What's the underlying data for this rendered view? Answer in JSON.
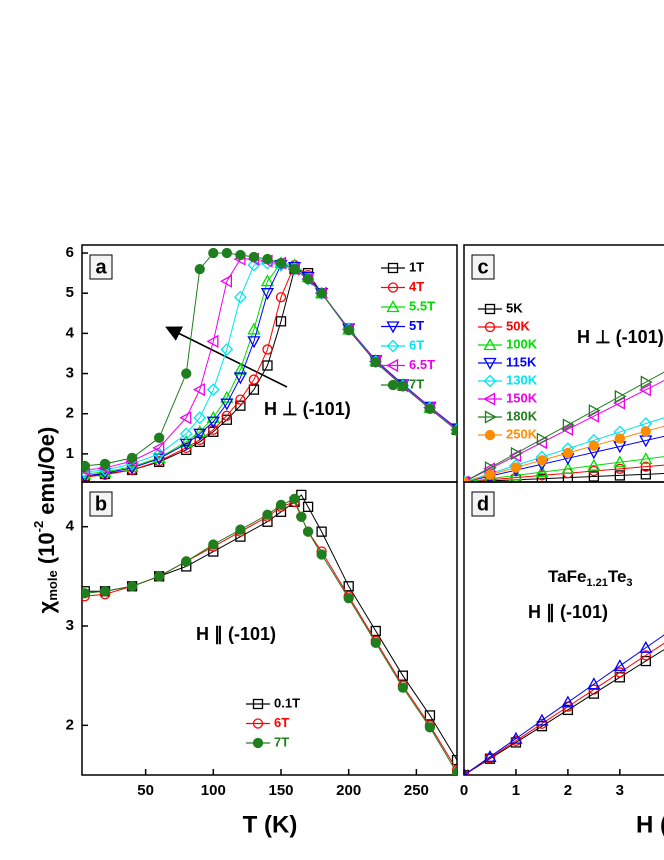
{
  "chart_data": [
    {
      "type": "line",
      "panel_label": "a",
      "ylabel": {
        "symbol": "χ",
        "sub": "mole",
        "pre": " (10",
        "sup": "-2",
        "post": " emu/Oe)"
      },
      "annotation": "H ⊥ (-101)",
      "x": [
        5,
        20,
        40,
        60,
        80,
        90,
        100,
        110,
        120,
        130,
        140,
        150,
        160,
        170,
        180,
        200,
        220,
        240,
        260,
        280
      ],
      "xlim": [
        3,
        280
      ],
      "ylim": [
        0.3,
        6.2
      ],
      "yticks": [
        1,
        2,
        3,
        4,
        5,
        6
      ],
      "series": [
        {
          "name": "1T",
          "color": "#000000",
          "marker": "square",
          "values": [
            0.45,
            0.5,
            0.6,
            0.8,
            1.1,
            1.3,
            1.55,
            1.85,
            2.2,
            2.6,
            3.2,
            4.3,
            5.6,
            5.5,
            5.0,
            4.1,
            3.3,
            2.7,
            2.15,
            1.6
          ]
        },
        {
          "name": "4T",
          "color": "#ff0000",
          "marker": "circle",
          "values": [
            0.42,
            0.48,
            0.6,
            0.82,
            1.15,
            1.35,
            1.6,
            1.95,
            2.35,
            2.85,
            3.6,
            4.9,
            5.7,
            5.45,
            5.0,
            4.1,
            3.3,
            2.7,
            2.15,
            1.6
          ]
        },
        {
          "name": "5.5T",
          "color": "#00dd00",
          "marker": "triangle-up",
          "values": [
            0.5,
            0.55,
            0.68,
            0.9,
            1.3,
            1.55,
            1.9,
            2.4,
            3.1,
            4.1,
            5.3,
            5.75,
            5.7,
            5.4,
            5.0,
            4.1,
            3.32,
            2.72,
            2.15,
            1.62
          ]
        },
        {
          "name": "5T",
          "color": "#0000ff",
          "marker": "triangle-down",
          "values": [
            0.45,
            0.52,
            0.65,
            0.88,
            1.25,
            1.5,
            1.8,
            2.25,
            2.9,
            3.8,
            5.0,
            5.7,
            5.65,
            5.4,
            5.0,
            4.12,
            3.33,
            2.73,
            2.17,
            1.63
          ]
        },
        {
          "name": "6T",
          "color": "#00e5ee",
          "marker": "diamond",
          "values": [
            0.55,
            0.6,
            0.75,
            1.0,
            1.5,
            1.9,
            2.6,
            3.6,
            4.9,
            5.7,
            5.75,
            5.7,
            5.6,
            5.35,
            5.0,
            4.1,
            3.3,
            2.7,
            2.15,
            1.6
          ]
        },
        {
          "name": "6.5T",
          "color": "#ee00ee",
          "marker": "triangle-left",
          "values": [
            0.6,
            0.65,
            0.82,
            1.15,
            1.9,
            2.6,
            3.8,
            5.3,
            5.85,
            5.85,
            5.8,
            5.75,
            5.6,
            5.35,
            5.0,
            4.1,
            3.3,
            2.7,
            2.15,
            1.6
          ]
        },
        {
          "name": "7T",
          "color": "#1f7f1f",
          "marker": "sphere",
          "values": [
            0.7,
            0.75,
            0.9,
            1.4,
            3.0,
            5.6,
            6.0,
            6.0,
            5.95,
            5.9,
            5.85,
            5.75,
            5.6,
            5.35,
            5.0,
            4.08,
            3.28,
            2.68,
            2.12,
            1.58
          ]
        }
      ]
    },
    {
      "type": "line",
      "panel_label": "b",
      "xlabel": "T (K)",
      "annotation": "H ∥ (-101)",
      "x": [
        5,
        20,
        40,
        60,
        80,
        100,
        120,
        140,
        150,
        160,
        165,
        170,
        180,
        200,
        220,
        240,
        260,
        280
      ],
      "xlim": [
        3,
        280
      ],
      "xticks": [
        50,
        100,
        150,
        200,
        250
      ],
      "ylim": [
        1.5,
        4.45
      ],
      "yticks": [
        2,
        3,
        4
      ],
      "series": [
        {
          "name": "0.1T",
          "color": "#000000",
          "marker": "square",
          "values": [
            3.35,
            3.35,
            3.4,
            3.5,
            3.6,
            3.75,
            3.9,
            4.05,
            4.15,
            4.25,
            4.32,
            4.2,
            3.95,
            3.4,
            2.95,
            2.5,
            2.1,
            1.65
          ]
        },
        {
          "name": "6T",
          "color": "#ff0000",
          "marker": "circle",
          "values": [
            3.3,
            3.32,
            3.4,
            3.5,
            3.65,
            3.8,
            3.95,
            4.1,
            4.2,
            4.25,
            4.1,
            3.95,
            3.75,
            3.3,
            2.85,
            2.4,
            2.0,
            1.55
          ]
        },
        {
          "name": "7T",
          "color": "#1f7f1f",
          "marker": "sphere",
          "values": [
            3.33,
            3.35,
            3.4,
            3.5,
            3.65,
            3.82,
            3.97,
            4.12,
            4.22,
            4.28,
            4.1,
            3.95,
            3.72,
            3.28,
            2.83,
            2.38,
            1.98,
            1.52
          ]
        }
      ]
    },
    {
      "type": "line",
      "panel_label": "c",
      "annotation": "H ⊥ (-101)",
      "x": [
        0,
        0.5,
        1,
        1.5,
        2,
        2.5,
        3,
        3.5,
        4
      ],
      "xlim": [
        0,
        3.85
      ],
      "ylim": [
        0,
        5.4
      ],
      "series": [
        {
          "name": "5K",
          "color": "#000000",
          "marker": "square",
          "values": [
            0,
            0.025,
            0.05,
            0.075,
            0.1,
            0.125,
            0.15,
            0.175,
            0.2
          ]
        },
        {
          "name": "50K",
          "color": "#ff0000",
          "marker": "circle",
          "values": [
            0,
            0.05,
            0.1,
            0.15,
            0.2,
            0.25,
            0.3,
            0.35,
            0.4
          ]
        },
        {
          "name": "100K",
          "color": "#00dd00",
          "marker": "triangle-up",
          "values": [
            0,
            0.075,
            0.15,
            0.225,
            0.3,
            0.375,
            0.45,
            0.525,
            0.6
          ]
        },
        {
          "name": "115K",
          "color": "#0000ff",
          "marker": "triangle-down",
          "values": [
            0,
            0.135,
            0.27,
            0.405,
            0.54,
            0.675,
            0.81,
            0.945,
            1.08
          ]
        },
        {
          "name": "130K",
          "color": "#00e5ee",
          "marker": "diamond",
          "values": [
            0,
            0.19,
            0.38,
            0.57,
            0.76,
            0.95,
            1.14,
            1.33,
            1.52
          ]
        },
        {
          "name": "150K",
          "color": "#ee00ee",
          "marker": "triangle-left",
          "values": [
            0,
            0.3,
            0.6,
            0.9,
            1.2,
            1.5,
            1.8,
            2.1,
            2.4
          ]
        },
        {
          "name": "180K",
          "color": "#1f7f1f",
          "marker": "triangle-right",
          "values": [
            0,
            0.325,
            0.65,
            0.975,
            1.3,
            1.625,
            1.95,
            2.275,
            2.6
          ]
        },
        {
          "name": "250K",
          "color": "#ff8c00",
          "marker": "sphere",
          "values": [
            0,
            0.165,
            0.33,
            0.495,
            0.66,
            0.825,
            0.99,
            1.155,
            1.32
          ]
        }
      ]
    },
    {
      "type": "line",
      "panel_label": "d",
      "xlabel": "H (T)",
      "formula": [
        "TaFe",
        "1.21",
        "Te",
        "3"
      ],
      "annotation": "H ∥ (-101)",
      "x": [
        0,
        0.5,
        1,
        1.5,
        2,
        2.5,
        3,
        3.5,
        4
      ],
      "xlim": [
        0,
        3.85
      ],
      "xticks": [
        0,
        1,
        2,
        3
      ],
      "ylim": [
        0,
        5.4
      ],
      "series": [
        {
          "color": "#000000",
          "marker": "square",
          "values": [
            0,
            0.3,
            0.6,
            0.9,
            1.2,
            1.5,
            1.8,
            2.1,
            2.4
          ]
        },
        {
          "color": "#ff0000",
          "marker": "circle",
          "values": [
            0,
            0.315,
            0.63,
            0.945,
            1.26,
            1.575,
            1.89,
            2.205,
            2.52
          ]
        },
        {
          "color": "#0000ff",
          "marker": "triangle-up",
          "values": [
            0,
            0.335,
            0.67,
            1.005,
            1.34,
            1.675,
            2.01,
            2.345,
            2.68
          ]
        }
      ]
    }
  ]
}
